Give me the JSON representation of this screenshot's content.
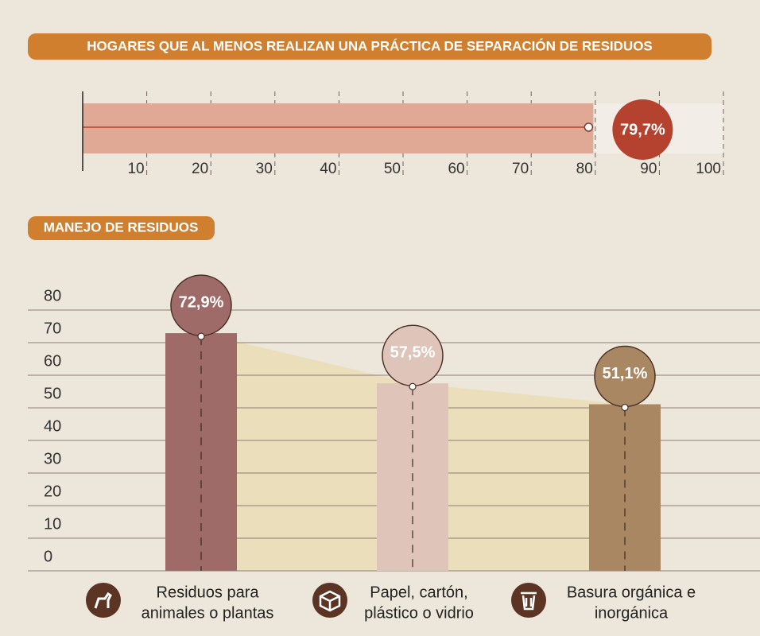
{
  "chart_data": [
    {
      "type": "hbar",
      "title": "HOGARES QUE AL MENOS REALIZAN UNA PRÁCTICA DE SEPARACIÓN DE RESIDUOS",
      "values": [
        79.7
      ],
      "value_labels": [
        "79,7%"
      ],
      "color": "#dfa995",
      "xlim": [
        0,
        100
      ],
      "xticks": [
        10,
        20,
        30,
        40,
        50,
        60,
        70,
        80,
        90,
        100
      ],
      "grid": true
    },
    {
      "type": "bar",
      "title": "MANEJO DE RESIDUOS",
      "categories": [
        [
          "Residuos para",
          "animales o plantas"
        ],
        [
          "Papel, cartón,",
          "plástico o vidrio"
        ],
        [
          "Basura orgánica e",
          "inorgánica"
        ]
      ],
      "values": [
        72.9,
        57.5,
        51.1
      ],
      "value_labels": [
        "72,9%",
        "57,5%",
        "51,1%"
      ],
      "colors": [
        "#9e6b68",
        "#dfc4b9",
        "#a98763"
      ],
      "ylim": [
        0,
        80
      ],
      "yticks": [
        0,
        10,
        20,
        30,
        40,
        50,
        60,
        70,
        80
      ],
      "grid": true
    }
  ]
}
